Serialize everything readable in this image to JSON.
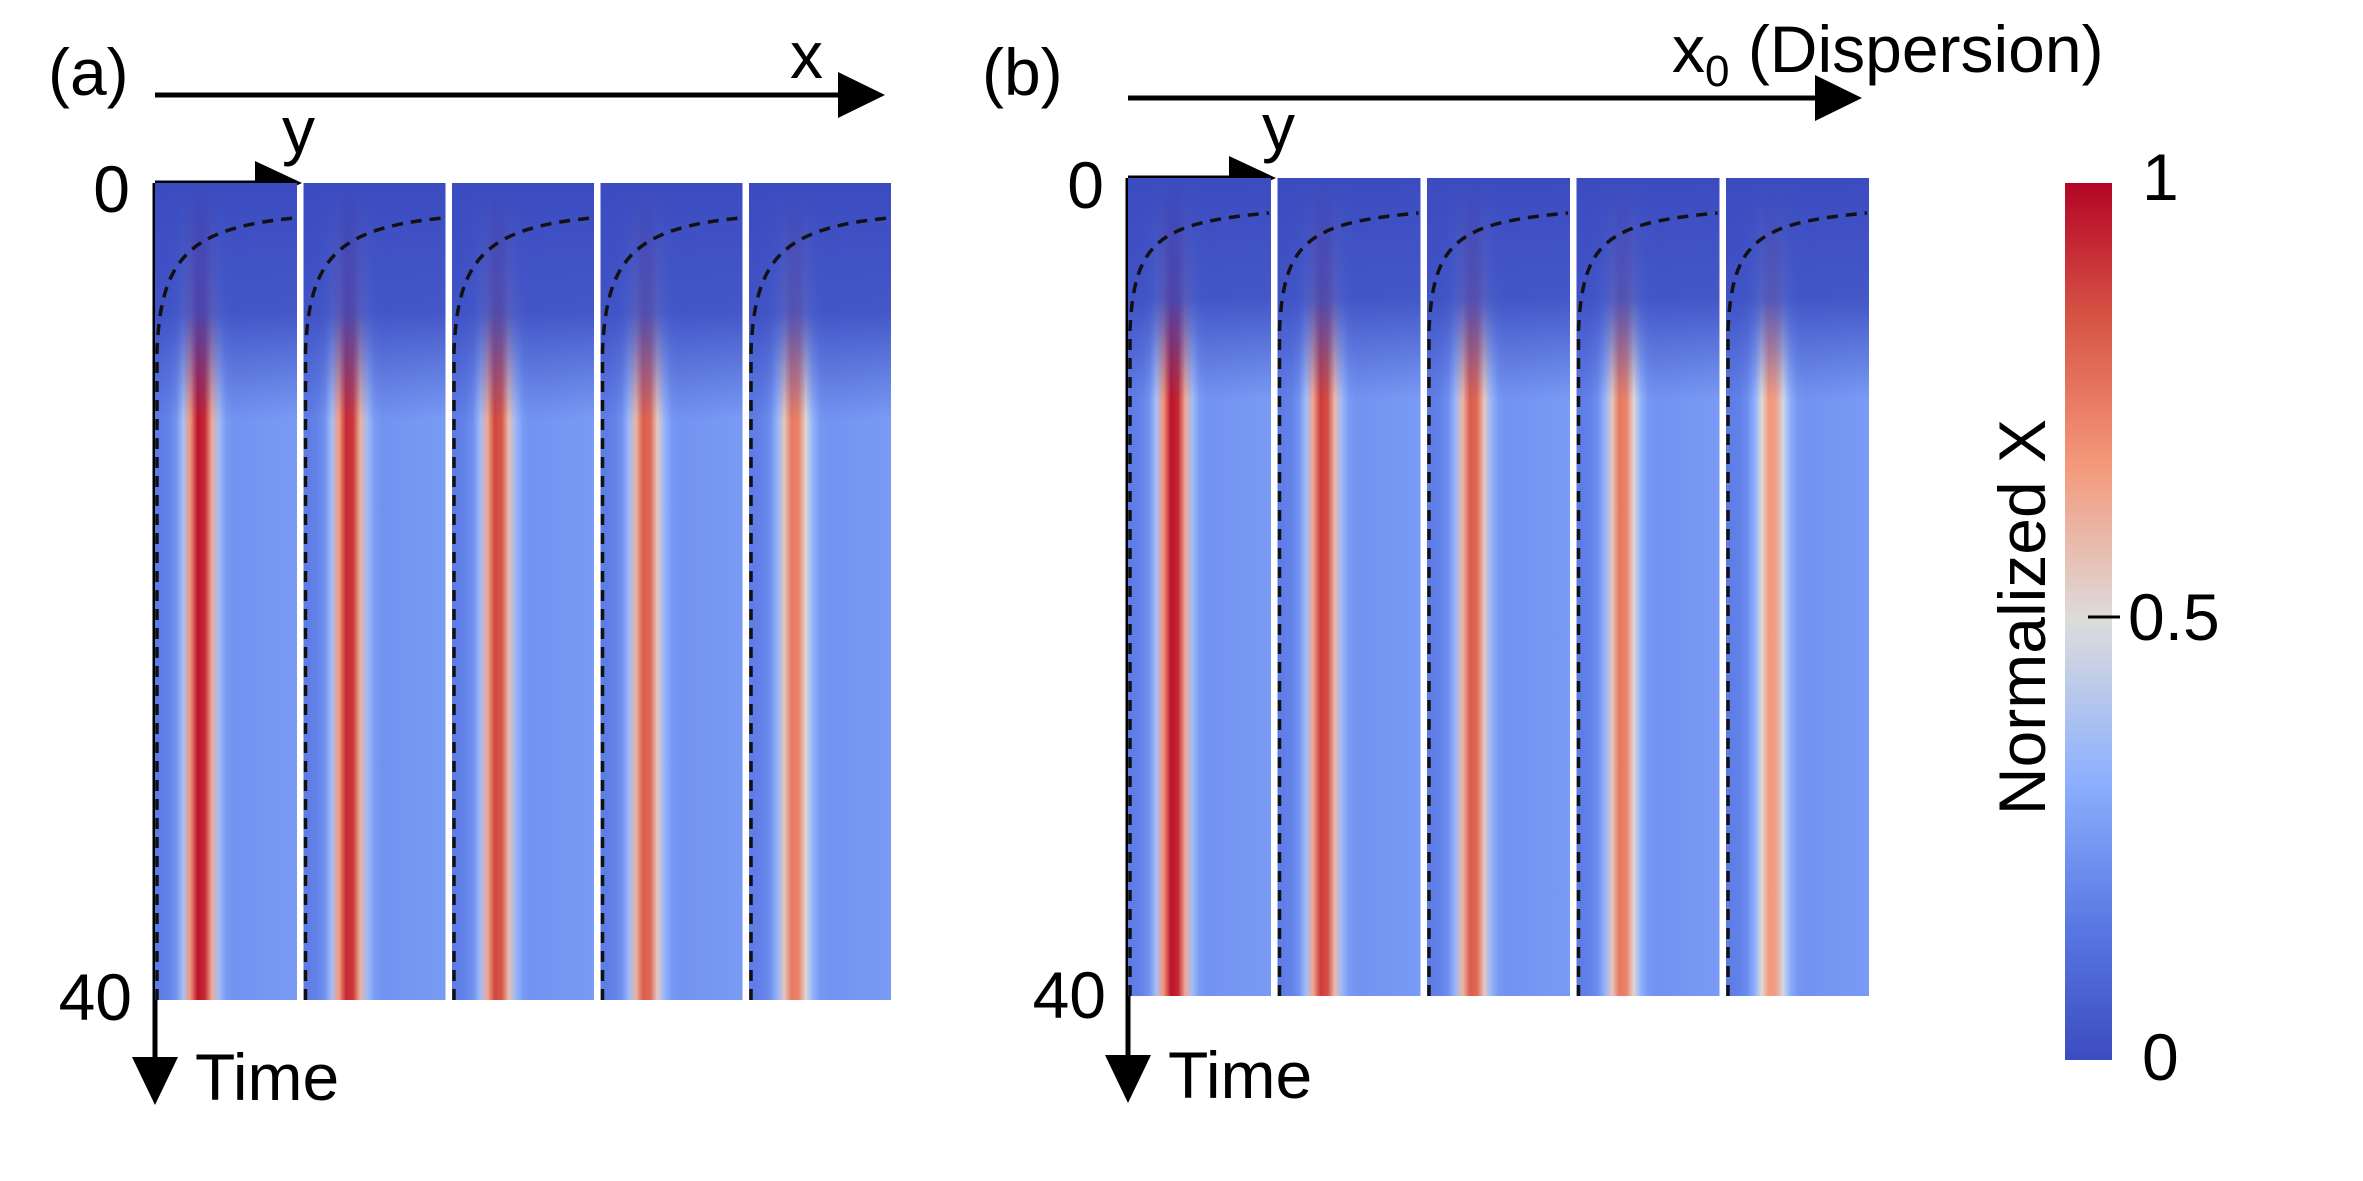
{
  "figure": {
    "panels": [
      {
        "id": "a",
        "label": "(a)",
        "top_axis_label": "x",
        "top_axis_subscript": "",
        "top_axis_suffix": "",
        "y_axis_label": "y",
        "time_axis_label": "Time",
        "time_start_label": "0",
        "time_end_label": "40"
      },
      {
        "id": "b",
        "label": "(b)",
        "top_axis_label": "x",
        "top_axis_subscript": "0",
        "top_axis_suffix": " (Dispersion)",
        "y_axis_label": "y",
        "time_axis_label": "Time",
        "time_start_label": "0",
        "time_end_label": "40"
      }
    ],
    "colorbar": {
      "label": "Normalized X",
      "ticks": [
        "1",
        "0.5",
        "0"
      ]
    }
  },
  "chart_data": {
    "type": "heatmap",
    "description_units": "Normalized X over y (horizontal within strip) and Time (vertical, 0 to 40), five strips per panel",
    "time_range": [
      0,
      40
    ],
    "value_range": [
      0,
      1
    ],
    "colormap": "coolwarm",
    "colormap_colors": {
      "low": "#3b4cc0",
      "mid": "#dddcdc",
      "high": "#b40426"
    },
    "panels": [
      {
        "label": "(a)",
        "strip_count": 5,
        "peak_normalized_X": [
          1.0,
          0.96,
          0.9,
          0.85,
          0.78
        ]
      },
      {
        "label": "(b)",
        "strip_count": 5,
        "peak_normalized_X": [
          1.0,
          0.92,
          0.85,
          0.78,
          0.7
        ]
      }
    ],
    "colorbar": {
      "label": "Normalized X",
      "ticks": [
        0,
        0.5,
        1
      ],
      "range": [
        0,
        1
      ]
    },
    "annotations": [
      "dashed black curves marking front boundary in each strip"
    ]
  }
}
